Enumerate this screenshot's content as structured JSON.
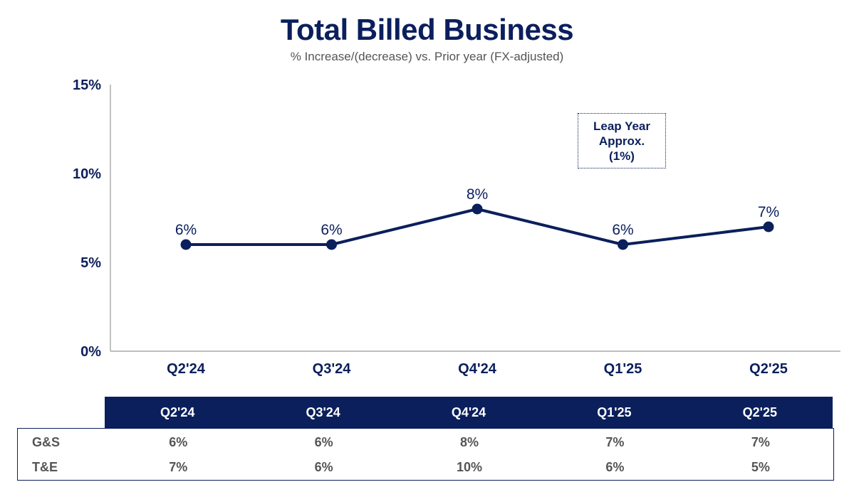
{
  "chart_data": {
    "type": "line",
    "title": "Total Billed Business",
    "subtitle": "% Increase/(decrease) vs. Prior year (FX-adjusted)",
    "categories": [
      "Q2'24",
      "Q3'24",
      "Q4'24",
      "Q1'25",
      "Q2'25"
    ],
    "series": [
      {
        "values": [
          6,
          6,
          8,
          6,
          7
        ]
      }
    ],
    "data_labels": [
      "6%",
      "6%",
      "8%",
      "6%",
      "7%"
    ],
    "yticks": [
      "0%",
      "5%",
      "10%",
      "15%"
    ],
    "ylim": [
      0,
      15
    ],
    "grid": false,
    "line_color": "#0b1f5c",
    "annotation": [
      "Leap Year",
      "Approx.",
      "(1%)"
    ]
  },
  "table": {
    "headers": [
      "Q2'24",
      "Q3'24",
      "Q4'24",
      "Q1'25",
      "Q2'25"
    ],
    "rows": [
      {
        "label": "G&S",
        "values": [
          "6%",
          "6%",
          "8%",
          "7%",
          "7%"
        ]
      },
      {
        "label": "T&E",
        "values": [
          "7%",
          "6%",
          "10%",
          "6%",
          "5%"
        ]
      }
    ]
  },
  "colors": {
    "navy": "#0b1f5c",
    "gray_text": "#555555"
  }
}
